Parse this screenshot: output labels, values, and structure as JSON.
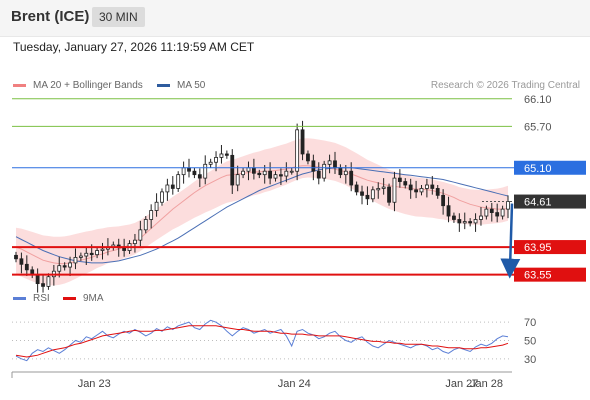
{
  "header": {
    "title": "Brent (ICE)",
    "timeframe": "30 MIN"
  },
  "timestamp": "Tuesday, January 27, 2026 11:19:59 AM CET",
  "legend": {
    "ma20": {
      "label": "MA 20 + Bollinger Bands",
      "color": "#f08080"
    },
    "ma50": {
      "label": "MA 50",
      "color": "#2e5c9e"
    }
  },
  "credit": "Research © 2026 Trading Central",
  "rsi_legend": {
    "rsi": {
      "label": "RSI",
      "color": "#5b7fd6"
    },
    "ma9": {
      "label": "9MA",
      "color": "#e01010"
    }
  },
  "chart_data": [
    {
      "type": "candlestick",
      "title": "Brent (ICE)",
      "timeframe": "30 MIN",
      "current_price": 64.61,
      "y_range": [
        63.4,
        66.3
      ],
      "x_ticks": [
        "Jan 23",
        "Jan 24",
        "Jan 27",
        "Jan 28"
      ],
      "levels": [
        {
          "value": 66.1,
          "label": "66.10",
          "kind": "resistance",
          "color": "#7bc043"
        },
        {
          "value": 65.7,
          "label": "65.70",
          "kind": "resistance",
          "color": "#7bc043"
        },
        {
          "value": 65.1,
          "label": "65.10",
          "kind": "pivot",
          "color": "#2b6fe0"
        },
        {
          "value": 64.61,
          "label": "64.61",
          "kind": "last-price",
          "color": "#333333"
        },
        {
          "value": 63.95,
          "label": "63.95",
          "kind": "support",
          "color": "#e01010"
        },
        {
          "value": 63.55,
          "label": "63.55",
          "kind": "support",
          "color": "#e01010"
        }
      ],
      "close": [
        63.78,
        63.7,
        63.62,
        63.55,
        63.42,
        63.38,
        63.52,
        63.6,
        63.68,
        63.66,
        63.72,
        63.8,
        63.82,
        63.86,
        63.84,
        63.9,
        63.92,
        63.95,
        63.98,
        63.94,
        63.9,
        64.0,
        64.05,
        64.2,
        64.35,
        64.48,
        64.6,
        64.75,
        64.85,
        64.8,
        65.0,
        65.1,
        65.05,
        65.0,
        64.95,
        65.15,
        65.18,
        65.25,
        65.3,
        65.28,
        64.85,
        65.0,
        65.05,
        65.1,
        65.02,
        65.0,
        65.05,
        64.95,
        65.0,
        64.98,
        65.05,
        65.05,
        65.65,
        65.3,
        65.2,
        65.05,
        64.95,
        65.15,
        65.2,
        65.1,
        65.0,
        65.05,
        64.85,
        64.75,
        64.7,
        64.65,
        64.78,
        64.8,
        64.82,
        64.6,
        64.95,
        64.9,
        64.85,
        64.78,
        64.75,
        64.8,
        64.85,
        64.8,
        64.7,
        64.55,
        64.4,
        64.35,
        64.3,
        64.32,
        64.3,
        64.35,
        64.4,
        64.5,
        64.45,
        64.4,
        64.5,
        64.61
      ],
      "ma20": [
        63.95,
        63.92,
        63.88,
        63.84,
        63.8,
        63.76,
        63.74,
        63.72,
        63.71,
        63.71,
        63.72,
        63.74,
        63.76,
        63.78,
        63.8,
        63.83,
        63.85,
        63.88,
        63.9,
        63.92,
        63.95,
        63.98,
        64.02,
        64.08,
        64.15,
        64.22,
        64.29,
        64.36,
        64.43,
        64.5,
        64.56,
        64.62,
        64.68,
        64.74,
        64.79,
        64.84,
        64.88,
        64.92,
        64.96,
        64.99,
        65.0,
        65.01,
        65.02,
        65.03,
        65.04,
        65.04,
        65.05,
        65.05,
        65.06,
        65.07,
        65.08,
        65.1,
        65.12,
        65.13,
        65.13,
        65.12,
        65.11,
        65.1,
        65.09,
        65.08,
        65.06,
        65.04,
        65.01,
        64.98,
        64.95,
        64.92,
        64.9,
        64.88,
        64.86,
        64.84,
        64.83,
        64.82,
        64.81,
        64.8,
        64.79,
        64.79,
        64.78,
        64.77,
        64.75,
        64.73,
        64.7,
        64.67,
        64.63,
        64.6,
        64.57,
        64.55,
        64.53,
        64.52,
        64.51,
        64.5,
        64.5,
        64.51
      ],
      "ma50": [
        64.1,
        64.06,
        64.02,
        63.98,
        63.94,
        63.9,
        63.87,
        63.84,
        63.81,
        63.79,
        63.77,
        63.75,
        63.74,
        63.73,
        63.72,
        63.72,
        63.72,
        63.73,
        63.74,
        63.75,
        63.77,
        63.79,
        63.81,
        63.83,
        63.86,
        63.89,
        63.92,
        63.96,
        64.0,
        64.04,
        64.08,
        64.13,
        64.18,
        64.23,
        64.28,
        64.33,
        64.38,
        64.43,
        64.48,
        64.53,
        64.57,
        64.61,
        64.65,
        64.69,
        64.73,
        64.77,
        64.8,
        64.83,
        64.86,
        64.89,
        64.92,
        64.95,
        64.98,
        65.01,
        65.03,
        65.05,
        65.07,
        65.08,
        65.09,
        65.1,
        65.1,
        65.1,
        65.1,
        65.09,
        65.08,
        65.07,
        65.06,
        65.05,
        65.04,
        65.03,
        65.02,
        65.01,
        65.0,
        64.99,
        64.98,
        64.97,
        64.96,
        64.95,
        64.94,
        64.93,
        64.91,
        64.89,
        64.87,
        64.85,
        64.83,
        64.81,
        64.79,
        64.77,
        64.75,
        64.73,
        64.71,
        64.69
      ],
      "forecast_arrow": {
        "from": 64.61,
        "to": 63.55
      }
    },
    {
      "type": "line",
      "title": "RSI",
      "y_ticks": [
        70,
        50,
        30
      ],
      "series": [
        {
          "name": "RSI",
          "color": "#5b7fd6",
          "values": [
            33,
            30,
            28,
            36,
            40,
            38,
            42,
            39,
            36,
            40,
            45,
            50,
            48,
            54,
            52,
            56,
            60,
            55,
            53,
            57,
            60,
            58,
            62,
            59,
            55,
            58,
            63,
            60,
            65,
            62,
            66,
            68,
            70,
            64,
            62,
            68,
            72,
            70,
            66,
            60,
            55,
            60,
            64,
            62,
            58,
            60,
            62,
            58,
            60,
            62,
            55,
            44,
            60,
            62,
            58,
            56,
            52,
            54,
            58,
            60,
            54,
            50,
            48,
            52,
            54,
            48,
            44,
            42,
            46,
            50,
            48,
            46,
            44,
            42,
            45,
            46,
            44,
            40,
            42,
            38,
            36,
            40,
            42,
            40,
            38,
            43,
            46,
            44,
            47,
            52,
            55,
            54
          ]
        },
        {
          "name": "9MA",
          "color": "#e01010",
          "values": [
            34,
            33,
            32,
            33,
            34,
            36,
            38,
            40,
            41,
            42,
            44,
            46,
            47,
            49,
            51,
            53,
            55,
            56,
            57,
            58,
            59,
            60,
            61,
            60,
            60,
            60,
            61,
            61,
            62,
            63,
            64,
            65,
            66,
            66,
            66,
            66,
            66,
            66,
            65,
            64,
            63,
            62,
            62,
            61,
            60,
            60,
            60,
            60,
            59,
            58,
            58,
            57,
            57,
            57,
            56,
            56,
            55,
            55,
            55,
            55,
            55,
            54,
            53,
            52,
            51,
            50,
            49,
            49,
            48,
            48,
            47,
            47,
            46,
            46,
            46,
            46,
            45,
            44,
            44,
            43,
            42,
            42,
            42,
            41,
            41,
            41,
            42,
            42,
            43,
            44,
            45,
            47
          ]
        }
      ]
    }
  ]
}
